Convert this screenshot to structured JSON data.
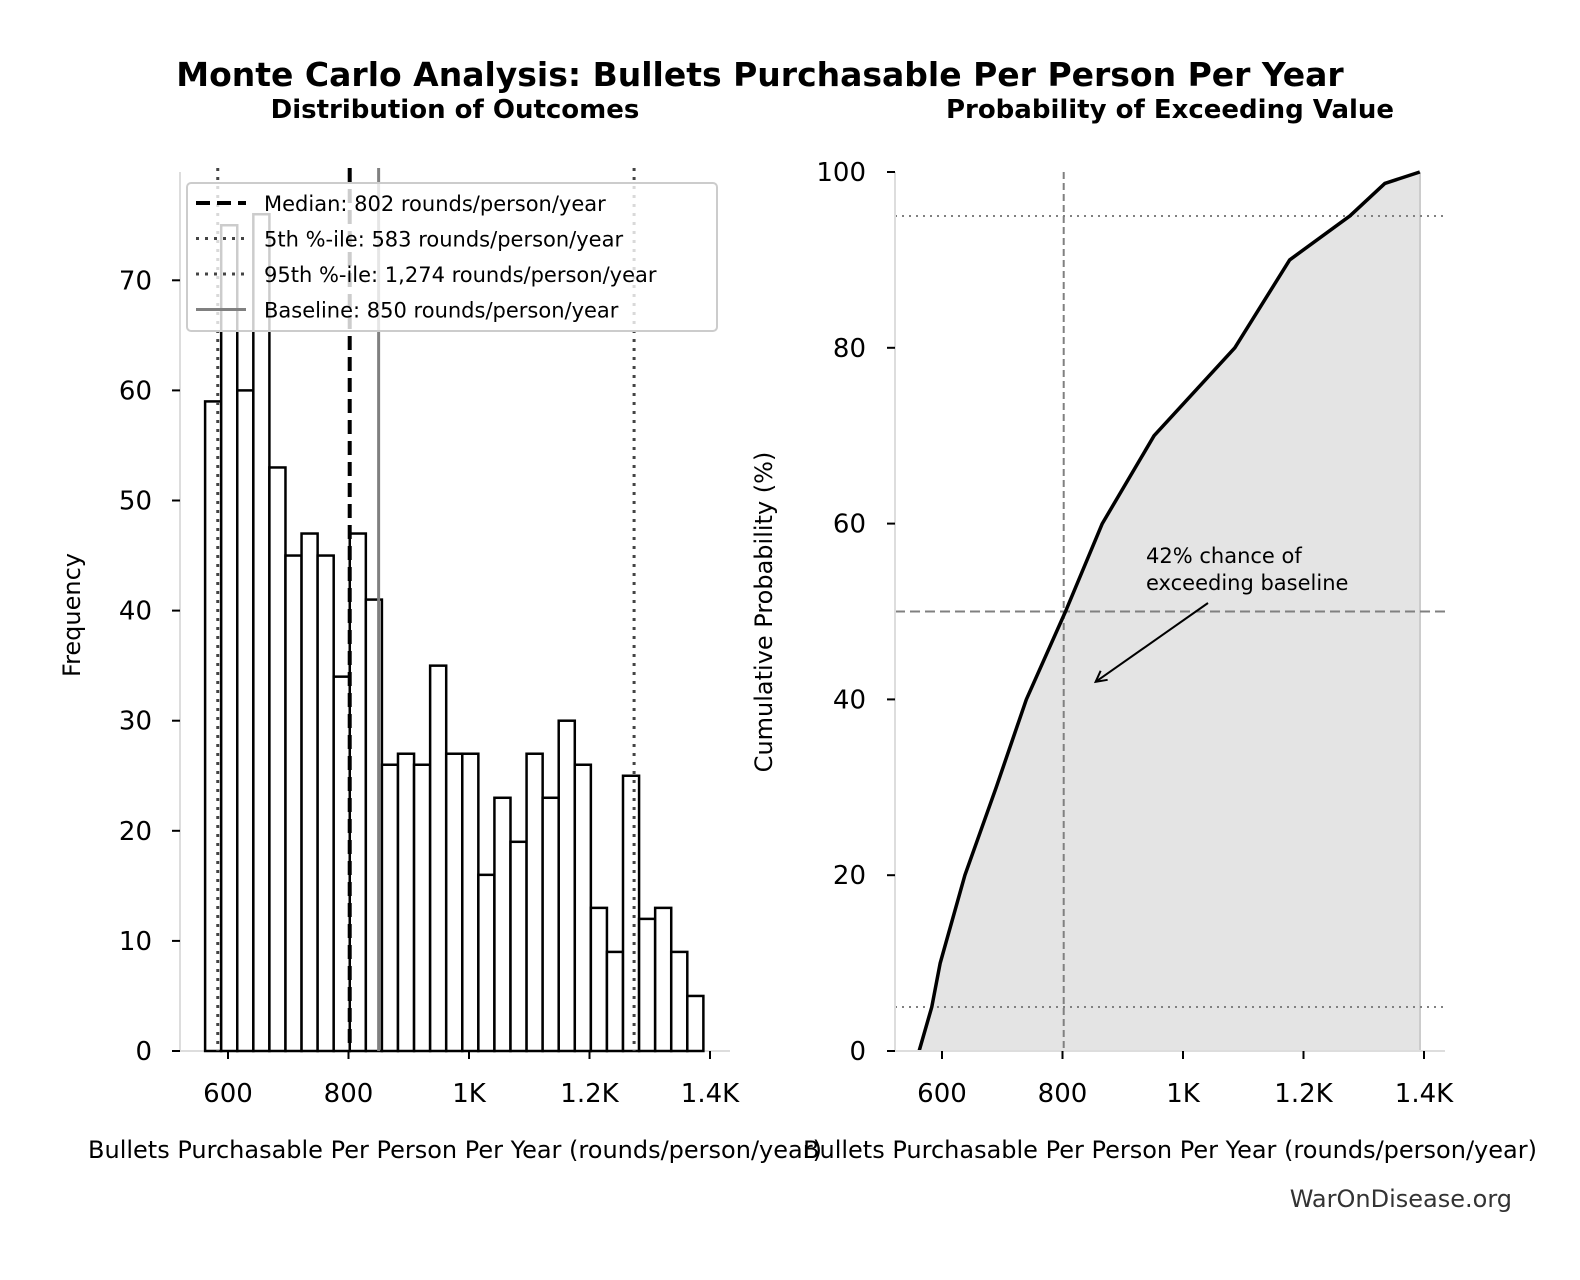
{
  "title": "Monte Carlo Analysis: Bullets Purchasable Per Person Per Year",
  "watermark": "WarOnDisease.org",
  "colors": {
    "fill": "#e4e4e4",
    "line": "#000000",
    "ref": "#808080"
  },
  "chart_data": [
    {
      "type": "bar",
      "title": "Distribution of Outcomes",
      "xlabel": "Bullets Purchasable Per Person Per Year (rounds/person/year)",
      "ylabel": "Frequency",
      "xlim": [
        528,
        1410
      ],
      "ylim": [
        0,
        80
      ],
      "xticks": [
        600,
        800,
        1000,
        1200,
        1400
      ],
      "xtick_labels": [
        "600",
        "800",
        "1K",
        "1.2K",
        "1.4K"
      ],
      "yticks": [
        0,
        10,
        20,
        30,
        40,
        50,
        60,
        70
      ],
      "bin_start": 562,
      "bin_end": 1389,
      "values": [
        59,
        75,
        60,
        76,
        53,
        45,
        47,
        45,
        34,
        47,
        41,
        26,
        27,
        26,
        35,
        27,
        27,
        16,
        23,
        19,
        27,
        23,
        30,
        26,
        13,
        9,
        25,
        12,
        13,
        9,
        5
      ],
      "reference_lines": [
        {
          "label": "Median: 802 rounds/person/year",
          "x": 802,
          "style": "dashed"
        },
        {
          "label": "5th %-ile: 583 rounds/person/year",
          "x": 583,
          "style": "dotted"
        },
        {
          "label": "95th %-ile: 1,274 rounds/person/year",
          "x": 1274,
          "style": "dotted"
        },
        {
          "label": "Baseline: 850 rounds/person/year",
          "x": 850,
          "style": "solid"
        }
      ],
      "legend": "top-right",
      "grid": false
    },
    {
      "type": "area",
      "title": "Probability of Exceeding Value",
      "xlabel": "Bullets Purchasable Per Person Per Year (rounds/person/year)",
      "ylabel": "Cumulative Probability (%)",
      "xlim": [
        528,
        1410
      ],
      "ylim": [
        0,
        100
      ],
      "xticks": [
        600,
        800,
        1000,
        1200,
        1400
      ],
      "xtick_labels": [
        "600",
        "800",
        "1K",
        "1.2K",
        "1.4K"
      ],
      "yticks": [
        0,
        20,
        40,
        60,
        80,
        100
      ],
      "x": [
        562,
        583,
        597,
        638,
        690,
        740,
        805,
        866,
        952,
        1086,
        1177,
        1277,
        1335,
        1393
      ],
      "y": [
        0,
        5,
        10,
        20,
        30,
        40,
        50,
        60,
        70,
        80,
        90,
        95,
        98.7,
        100
      ],
      "hlines": [
        5,
        50,
        95
      ],
      "vline": 802,
      "annotation": {
        "text_line1": "42% chance of",
        "text_line2": "exceeding baseline",
        "arrow_to": [
          855,
          42
        ]
      },
      "grid": false
    }
  ]
}
